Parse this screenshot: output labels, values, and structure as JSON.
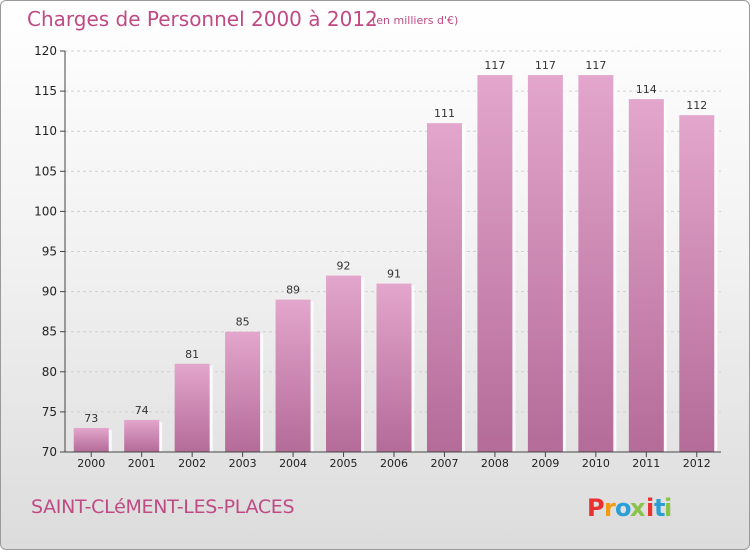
{
  "header": {
    "title": "Charges de Personnel 2000 à 2012",
    "subtitle": "(en milliers d'€)"
  },
  "footer": {
    "commune": "SAINT-CLéMENT-LES-PLACES",
    "brand": "Proxiti",
    "brand_colors": [
      "#e8312f",
      "#f39c12",
      "#2a9fd6",
      "#8bc34a",
      "#e8312f",
      "#2a9fd6",
      "#8bc34a"
    ]
  },
  "chart_data": {
    "type": "bar",
    "categories": [
      "2000",
      "2001",
      "2002",
      "2003",
      "2004",
      "2005",
      "2006",
      "2007",
      "2008",
      "2009",
      "2010",
      "2011",
      "2012"
    ],
    "values": [
      73,
      74,
      81,
      85,
      89,
      92,
      91,
      111,
      117,
      117,
      117,
      114,
      112
    ],
    "ylim": [
      70,
      120
    ],
    "yticks": [
      70,
      75,
      80,
      85,
      90,
      95,
      100,
      105,
      110,
      115,
      120
    ],
    "grid": true,
    "bar_color_top": "#e3a6cc",
    "bar_color_bottom": "#b46b98"
  }
}
